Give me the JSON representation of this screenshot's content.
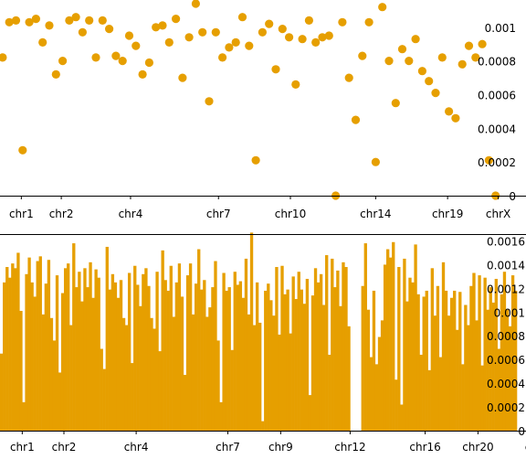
{
  "colors": {
    "accent": "#E69F00",
    "axis": "#000000",
    "background": "#ffffff"
  },
  "chart_data": [
    {
      "type": "scatter",
      "title": "",
      "xlabel": "",
      "ylabel": "",
      "ylim": [
        0,
        0.00114
      ],
      "y_ticks": [
        {
          "value": 0,
          "label": "0"
        },
        {
          "value": 0.0002,
          "label": "0.0002"
        },
        {
          "value": 0.0004,
          "label": "0.0004"
        },
        {
          "value": 0.0006,
          "label": "0.0006"
        },
        {
          "value": 0.0008,
          "label": "0.0008"
        },
        {
          "value": 0.001,
          "label": "0.001"
        }
      ],
      "x_ticks": [
        {
          "value": 8,
          "label": "chr1"
        },
        {
          "value": 23,
          "label": "chr2"
        },
        {
          "value": 49,
          "label": "chr4"
        },
        {
          "value": 82,
          "label": "chr7"
        },
        {
          "value": 109,
          "label": "chr10"
        },
        {
          "value": 141,
          "label": "chr14"
        },
        {
          "value": 168,
          "label": "chr19"
        },
        {
          "value": 187,
          "label": "chrX"
        }
      ],
      "xlim": [
        0,
        194
      ],
      "grid": false,
      "color": "#E69F00",
      "points": [
        [
          1,
          0.00082
        ],
        [
          3.5,
          0.00103
        ],
        [
          6,
          0.00104
        ],
        [
          8.5,
          0.00027
        ],
        [
          11,
          0.00103
        ],
        [
          13.5,
          0.00105
        ],
        [
          16,
          0.00091
        ],
        [
          18.5,
          0.00101
        ],
        [
          21,
          0.00072
        ],
        [
          23.5,
          0.0008
        ],
        [
          26,
          0.00104
        ],
        [
          28.5,
          0.00106
        ],
        [
          31,
          0.00097
        ],
        [
          33.5,
          0.00104
        ],
        [
          36,
          0.00082
        ],
        [
          38.5,
          0.00104
        ],
        [
          41,
          0.00099
        ],
        [
          43.5,
          0.00083
        ],
        [
          46,
          0.0008
        ],
        [
          48.5,
          0.00095
        ],
        [
          51,
          0.00089
        ],
        [
          53.5,
          0.00072
        ],
        [
          56,
          0.00079
        ],
        [
          58.5,
          0.001
        ],
        [
          61,
          0.00101
        ],
        [
          63.5,
          0.00091
        ],
        [
          66,
          0.00105
        ],
        [
          68.5,
          0.0007
        ],
        [
          71,
          0.00094
        ],
        [
          73.5,
          0.00114
        ],
        [
          76,
          0.00097
        ],
        [
          78.5,
          0.00056
        ],
        [
          81,
          0.00097
        ],
        [
          83.5,
          0.00082
        ],
        [
          86,
          0.00088
        ],
        [
          88.5,
          0.00091
        ],
        [
          91,
          0.00106
        ],
        [
          93.5,
          0.00089
        ],
        [
          96,
          0.00021
        ],
        [
          98.5,
          0.00097
        ],
        [
          101,
          0.00102
        ],
        [
          103.5,
          0.00075
        ],
        [
          106,
          0.00099
        ],
        [
          108.5,
          0.00094
        ],
        [
          111,
          0.00066
        ],
        [
          113.5,
          0.00093
        ],
        [
          116,
          0.00104
        ],
        [
          118.5,
          0.00091
        ],
        [
          121,
          0.00094
        ],
        [
          123.5,
          0.00095
        ],
        [
          126,
          0.0
        ],
        [
          128.5,
          0.00103
        ],
        [
          131,
          0.0007
        ],
        [
          133.5,
          0.00045
        ],
        [
          136,
          0.00083
        ],
        [
          138.5,
          0.00103
        ],
        [
          141,
          0.0002
        ],
        [
          143.5,
          0.00112
        ],
        [
          146,
          0.0008
        ],
        [
          148.5,
          0.00055
        ],
        [
          151,
          0.00087
        ],
        [
          153.5,
          0.0008
        ],
        [
          156,
          0.00093
        ],
        [
          158.5,
          0.00074
        ],
        [
          161,
          0.00068
        ],
        [
          163.5,
          0.00061
        ],
        [
          166,
          0.00082
        ],
        [
          168.5,
          0.0005
        ],
        [
          171,
          0.00046
        ],
        [
          173.5,
          0.00078
        ],
        [
          176,
          0.00089
        ],
        [
          178.5,
          0.00082
        ],
        [
          181,
          0.0009
        ],
        [
          183.5,
          0.00021
        ],
        [
          186,
          0.0
        ]
      ]
    },
    {
      "type": "bar",
      "title": "",
      "xlabel": "",
      "ylabel": "",
      "ylim": [
        0,
        0.00165
      ],
      "y_ticks": [
        {
          "value": 0,
          "label": "0"
        },
        {
          "value": 0.0002,
          "label": "0.0002"
        },
        {
          "value": 0.0004,
          "label": "0.0004"
        },
        {
          "value": 0.0006,
          "label": "0.0006"
        },
        {
          "value": 0.0008,
          "label": "0.0008"
        },
        {
          "value": 0.001,
          "label": "0.001"
        },
        {
          "value": 0.0012,
          "label": "0.0012"
        },
        {
          "value": 0.0014,
          "label": "0.0014"
        },
        {
          "value": 0.0016,
          "label": "0.0016"
        }
      ],
      "x_ticks": [
        {
          "value": 8,
          "label": "chr1"
        },
        {
          "value": 23,
          "label": "chr2"
        },
        {
          "value": 49,
          "label": "chr4"
        },
        {
          "value": 82,
          "label": "chr7"
        },
        {
          "value": 101,
          "label": "chr9"
        },
        {
          "value": 126,
          "label": "chr12"
        },
        {
          "value": 153,
          "label": "chr16"
        },
        {
          "value": 172,
          "label": "chr20"
        },
        {
          "value": 192,
          "label": "chr"
        }
      ],
      "xlim": [
        0,
        186
      ],
      "grid": false,
      "color": "#E69F00",
      "values": [
        0.00065,
        0.00125,
        0.00138,
        0.00129,
        0.00141,
        0.00137,
        0.0015,
        0.00101,
        0.00024,
        0.00132,
        0.00146,
        0.00125,
        0.00113,
        0.00143,
        0.00147,
        0.00098,
        0.00124,
        0.00144,
        0.00095,
        0.00076,
        0.00131,
        0.00049,
        0.00116,
        0.00137,
        0.00141,
        0.00089,
        0.00158,
        0.00121,
        0.00134,
        0.00109,
        0.00137,
        0.00121,
        0.00142,
        0.00112,
        0.00136,
        0.00129,
        0.00069,
        0.00052,
        0.00155,
        0.00119,
        0.00132,
        0.00125,
        0.00112,
        0.00127,
        0.00095,
        0.00089,
        0.00133,
        0.00057,
        0.00139,
        0.00123,
        0.00105,
        0.00132,
        0.00137,
        0.00122,
        0.00095,
        0.00086,
        0.00134,
        0.00067,
        0.00152,
        0.00127,
        0.00118,
        0.00139,
        0.00096,
        0.00125,
        0.00141,
        0.00113,
        0.00047,
        0.00131,
        0.00141,
        0.00098,
        0.00124,
        0.00153,
        0.00119,
        0.00127,
        0.00096,
        0.00104,
        0.00121,
        0.00143,
        0.00076,
        0.00024,
        0.00133,
        0.00118,
        0.00121,
        0.00068,
        0.00134,
        0.00123,
        0.00126,
        0.00112,
        0.00145,
        0.00098,
        0.00167,
        0.00089,
        0.00125,
        0.00091,
        8e-05,
        0.00118,
        0.00124,
        0.0011,
        0.00097,
        0.00138,
        0.00081,
        0.00139,
        0.00115,
        0.00119,
        0.00082,
        0.0013,
        0.00111,
        0.00134,
        0.00119,
        0.00107,
        0.00128,
        0.0003,
        0.00114,
        0.00137,
        0.00125,
        0.00132,
        0.00106,
        0.00148,
        0.00064,
        0.00145,
        0.00121,
        0.00135,
        0.00105,
        0.00142,
        0.00138,
        0.00088,
        0,
        0,
        0,
        0,
        0.00122,
        0.00158,
        0.00102,
        0.00062,
        0.00118,
        0.00056,
        0.00079,
        0.00093,
        0.0014,
        0.00153,
        0.00146,
        0.00159,
        0.00043,
        0.00138,
        0.00022,
        0.00145,
        0.00109,
        0.00129,
        0.00125,
        0.00157,
        0.00115,
        0.00064,
        0.00113,
        0.00118,
        0.00051,
        0.00137,
        0.00097,
        0.00122,
        0.00062,
        0.00142,
        0.00118,
        0.00097,
        0.00112,
        0.00118,
        0.00085,
        0.00117,
        0.00056,
        0.00106,
        0.00089,
        0.00122,
        0.00133,
        0.00093,
        0.00131,
        0.00055,
        0.00129,
        0.00102,
        0.00121,
        0.00108,
        0.00128,
        0.00069,
        0.00115,
        0.00134,
        0.00102,
        0.00088,
        0.00131,
        0.00118
      ],
      "gaps": [
        [
          97,
          100
        ],
        [
          124,
          129
        ],
        [
          139,
          141
        ],
        [
          150,
          152
        ]
      ]
    }
  ]
}
